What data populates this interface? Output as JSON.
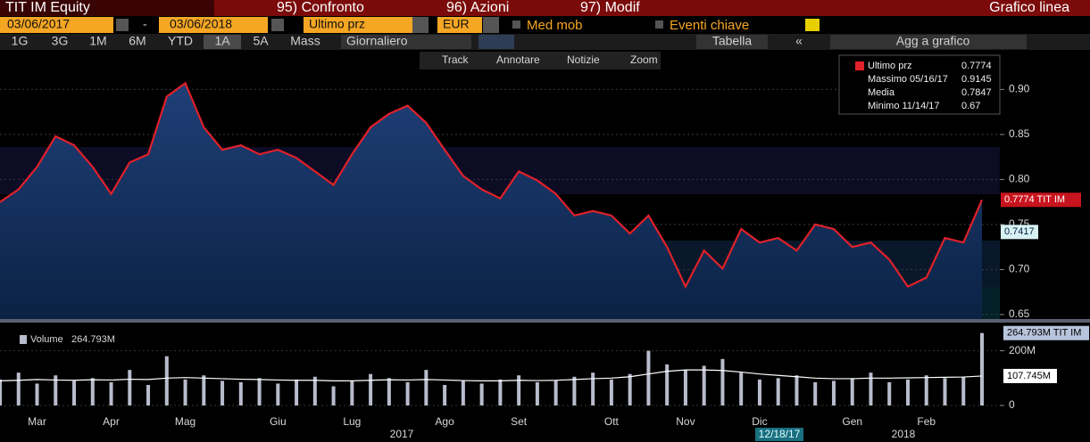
{
  "ui": {
    "row1": [
      "TIT IM Equity",
      "95) Confronto",
      "96) Azioni",
      "97) Modif",
      "Grafico linea"
    ],
    "start_date": "03/06/2017",
    "date_sep": "-",
    "end_date": "03/06/2018",
    "field": "Ultimo prz",
    "currency": "EUR",
    "moving_avg": "Med mob",
    "key_events": "Eventi chiave",
    "periods": [
      "1G",
      "3G",
      "1M",
      "6M",
      "YTD",
      "1A",
      "5A",
      "Mass"
    ],
    "frequency": "Giornaliero",
    "table": "Tabella",
    "collapse": "«",
    "add_to_chart": "Agg a grafico",
    "chart_tools": [
      "Track",
      "Annotare",
      "Notizie",
      "Zoom"
    ],
    "cursor_date": "12/18/17"
  },
  "chart_data": [
    {
      "type": "line",
      "categories": [
        null,
        null,
        "Mar",
        null,
        null,
        null,
        "Apr",
        null,
        null,
        null,
        "Mag",
        null,
        null,
        null,
        null,
        "Giu",
        null,
        null,
        null,
        "Lug",
        null,
        null,
        null,
        null,
        "Ago",
        null,
        null,
        null,
        "Set",
        null,
        null,
        null,
        null,
        "Ott",
        null,
        null,
        null,
        "Nov",
        null,
        null,
        null,
        "Dic",
        null,
        null,
        null,
        null,
        "Gen",
        null,
        null,
        null,
        "Feb",
        null,
        null,
        null
      ],
      "x_group_labels": [
        "2017",
        "2018"
      ],
      "series": [
        {
          "name": "Ultimo prz",
          "color": "#e0202a",
          "values": [
            0.775,
            0.789,
            0.814,
            0.848,
            0.838,
            0.814,
            0.784,
            0.819,
            0.828,
            0.892,
            0.907,
            0.858,
            0.833,
            0.838,
            0.828,
            0.833,
            0.824,
            0.809,
            0.794,
            0.828,
            0.858,
            0.873,
            0.882,
            0.863,
            0.833,
            0.804,
            0.789,
            0.779,
            0.809,
            0.799,
            0.784,
            0.76,
            0.765,
            0.76,
            0.74,
            0.76,
            0.725,
            0.681,
            0.721,
            0.701,
            0.745,
            0.73,
            0.735,
            0.721,
            0.75,
            0.745,
            0.725,
            0.73,
            0.711,
            0.681,
            0.691,
            0.735,
            0.73,
            0.7774
          ]
        }
      ],
      "ylim": [
        0.645,
        0.94
      ],
      "yticks": [
        0.65,
        {
          "value": 0.7,
          "label": "0.70"
        },
        0.75,
        {
          "value": 0.8,
          "label": "0.80"
        },
        0.85,
        {
          "value": 0.9,
          "label": "0.90"
        }
      ],
      "grid": true,
      "legend": [
        {
          "name": "Ultimo prz",
          "value": 0.7774
        },
        {
          "name": "Massimo 05/16/17",
          "value": 0.9145
        },
        {
          "name": "Media",
          "value": 0.7847
        },
        {
          "name": "Minimo 11/14/17",
          "value": 0.67
        }
      ],
      "annotations": [
        {
          "value": 0.7774,
          "label": "0.7774 TIT IM"
        },
        {
          "value": 0.7417,
          "label": "0.7417"
        }
      ]
    },
    {
      "type": "bar",
      "series": [
        {
          "name": "Volume",
          "color": "#b8bccc",
          "values": [
            95,
            120,
            80,
            110,
            90,
            100,
            85,
            130,
            75,
            180,
            95,
            110,
            90,
            85,
            100,
            80,
            95,
            105,
            70,
            90,
            115,
            100,
            85,
            130,
            75,
            90,
            80,
            95,
            110,
            85,
            90,
            105,
            120,
            95,
            115,
            200,
            150,
            130,
            145,
            170,
            120,
            95,
            100,
            110,
            85,
            90,
            100,
            120,
            85,
            95,
            110,
            100,
            105,
            264.793
          ]
        },
        {
          "name": "Med mob",
          "color": "#ffffff",
          "values": [
            90,
            92,
            95,
            93,
            92,
            94,
            93,
            96,
            95,
            100,
            102,
            100,
            98,
            96,
            95,
            93,
            92,
            92,
            90,
            90,
            92,
            94,
            93,
            95,
            93,
            91,
            90,
            90,
            92,
            91,
            92,
            95,
            98,
            100,
            105,
            115,
            125,
            130,
            130,
            128,
            122,
            115,
            110,
            105,
            100,
            98,
            98,
            100,
            100,
            101,
            102,
            103,
            104,
            107.745
          ]
        }
      ],
      "legend_value": {
        "value": 264.793,
        "label": "264.793M"
      },
      "ylim": [
        0,
        290
      ],
      "yticks": [
        0,
        {
          "value": 200,
          "label": "200M"
        }
      ],
      "annotations": [
        {
          "value": 264.793,
          "label": "264.793M TIT IM"
        },
        {
          "value": 107.745,
          "label": "107.745M"
        }
      ]
    }
  ]
}
